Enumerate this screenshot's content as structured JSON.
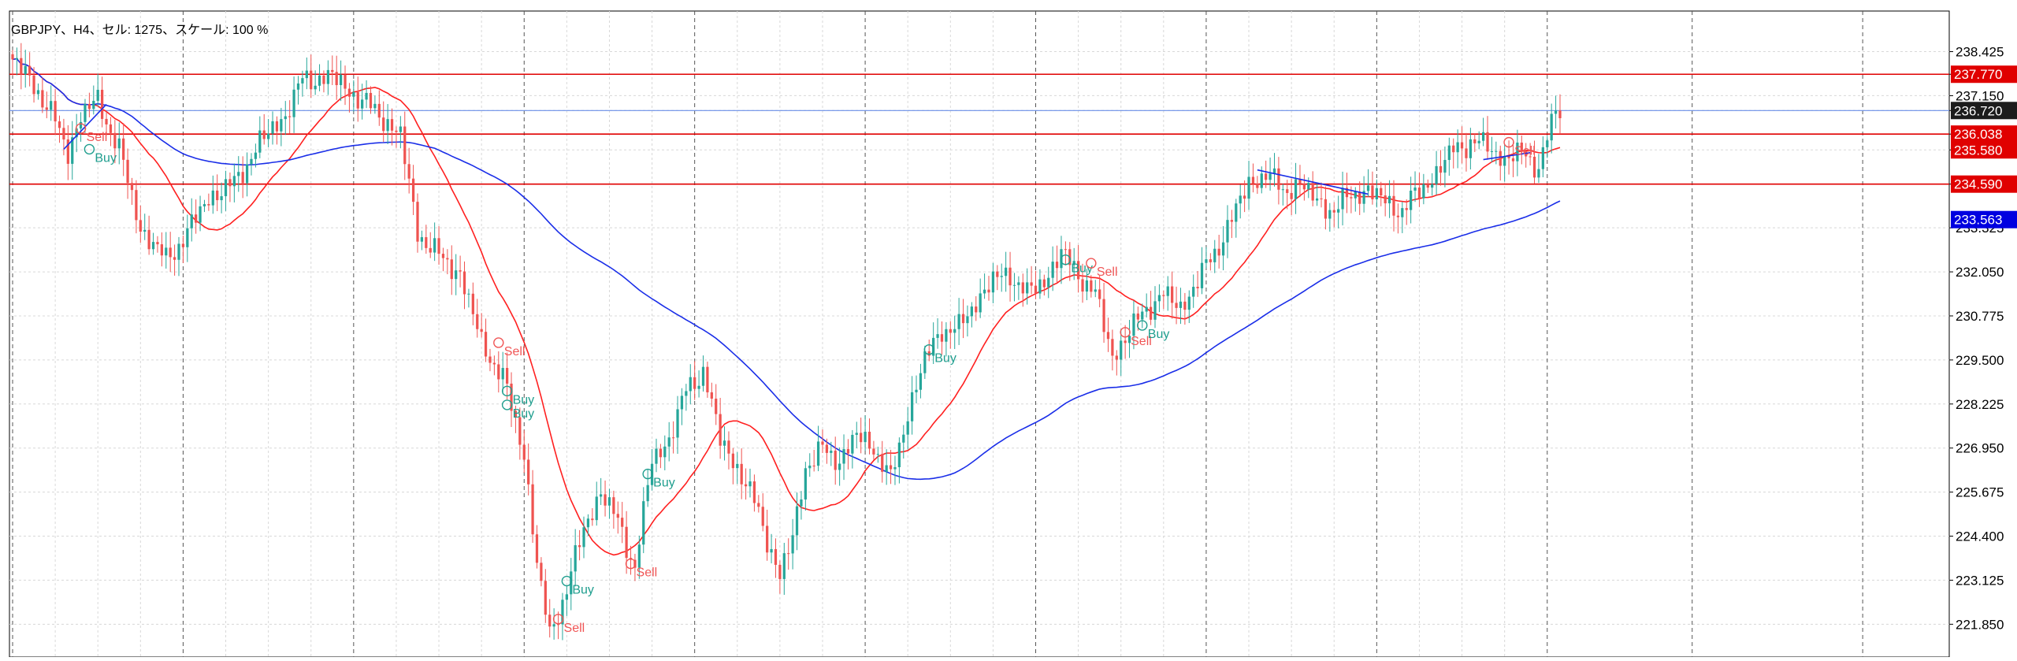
{
  "header": {
    "title": "GBPJPY、H4、セル: 1275、スケール: 100 %"
  },
  "colors": {
    "background": "#ffffff",
    "grid": "#d8d8d8",
    "candle_up": "#26a69a",
    "candle_down": "#ef5350",
    "ma_fast": "#ff2020",
    "ma_slow": "#1a2ee8",
    "hline": "#e00000",
    "current_line": "#6a8fe8",
    "signal_buy": "#1f9e8e",
    "signal_sell": "#f05555",
    "trend": "#1a2ee8"
  },
  "chart_data": {
    "type": "candlestick",
    "symbol": "GBPJPY",
    "timeframe": "H4",
    "ylim": [
      220.9,
      239.6
    ],
    "y_ticks": [
      221.85,
      223.125,
      224.4,
      225.675,
      226.95,
      228.225,
      229.5,
      230.775,
      232.05,
      233.325,
      234.59,
      235.58,
      236.038,
      236.72,
      237.15,
      237.77,
      238.425
    ],
    "y_tick_labels": [
      "221.850",
      "223.125",
      "224.400",
      "225.675",
      "226.950",
      "228.225",
      "229.500",
      "230.775",
      "232.050",
      "233.325",
      "",
      "",
      "",
      "",
      "237.150",
      "",
      "238.425"
    ],
    "price_tags": [
      {
        "value": 237.77,
        "label": "237.770",
        "kind": "level"
      },
      {
        "value": 236.72,
        "label": "236.720",
        "kind": "current"
      },
      {
        "value": 236.038,
        "label": "236.038",
        "kind": "level"
      },
      {
        "value": 235.58,
        "label": "235.580",
        "kind": "level"
      },
      {
        "value": 234.59,
        "label": "234.590",
        "kind": "level"
      },
      {
        "value": 233.563,
        "label": "233.563",
        "kind": "ma_slow"
      }
    ],
    "horizontal_lines": [
      237.77,
      236.038,
      234.59
    ],
    "current_price": 236.72,
    "close_keypoints": [
      [
        0,
        238.2
      ],
      [
        6,
        237.3
      ],
      [
        10,
        236.4
      ],
      [
        13,
        235.5
      ],
      [
        16,
        236.6
      ],
      [
        20,
        237.0
      ],
      [
        25,
        235.6
      ],
      [
        30,
        233.3
      ],
      [
        36,
        232.4
      ],
      [
        40,
        233.0
      ],
      [
        46,
        234.2
      ],
      [
        52,
        234.6
      ],
      [
        58,
        235.8
      ],
      [
        64,
        236.6
      ],
      [
        68,
        237.6
      ],
      [
        75,
        237.7
      ],
      [
        80,
        237.2
      ],
      [
        86,
        236.6
      ],
      [
        91,
        236.0
      ],
      [
        95,
        233.2
      ],
      [
        100,
        232.5
      ],
      [
        105,
        232.0
      ],
      [
        110,
        230.0
      ],
      [
        115,
        229.0
      ],
      [
        120,
        226.8
      ],
      [
        123,
        223.6
      ],
      [
        126,
        221.5
      ],
      [
        130,
        222.9
      ],
      [
        134,
        224.6
      ],
      [
        138,
        225.7
      ],
      [
        142,
        224.8
      ],
      [
        146,
        223.5
      ],
      [
        150,
        226.6
      ],
      [
        154,
        227.2
      ],
      [
        158,
        228.6
      ],
      [
        162,
        229.2
      ],
      [
        166,
        227.2
      ],
      [
        170,
        226.4
      ],
      [
        175,
        225.1
      ],
      [
        180,
        223.2
      ],
      [
        183,
        224.4
      ],
      [
        186,
        226.4
      ],
      [
        190,
        226.9
      ],
      [
        194,
        226.6
      ],
      [
        198,
        227.3
      ],
      [
        202,
        227.0
      ],
      [
        206,
        226.0
      ],
      [
        210,
        228.0
      ],
      [
        214,
        229.5
      ],
      [
        218,
        230.4
      ],
      [
        222,
        230.4
      ],
      [
        226,
        231.2
      ],
      [
        230,
        231.8
      ],
      [
        234,
        232.0
      ],
      [
        238,
        231.4
      ],
      [
        242,
        231.8
      ],
      [
        246,
        232.6
      ],
      [
        250,
        232.0
      ],
      [
        254,
        231.4
      ],
      [
        258,
        229.6
      ],
      [
        262,
        230.3
      ],
      [
        266,
        231.0
      ],
      [
        270,
        231.4
      ],
      [
        274,
        231.0
      ],
      [
        278,
        231.8
      ],
      [
        282,
        232.6
      ],
      [
        286,
        233.6
      ],
      [
        290,
        234.6
      ],
      [
        294,
        234.9
      ],
      [
        298,
        234.4
      ],
      [
        302,
        234.6
      ],
      [
        306,
        234.1
      ],
      [
        310,
        233.8
      ],
      [
        314,
        234.3
      ],
      [
        318,
        234.4
      ],
      [
        322,
        234.1
      ],
      [
        326,
        233.8
      ],
      [
        330,
        234.4
      ],
      [
        334,
        234.9
      ],
      [
        338,
        235.6
      ],
      [
        342,
        235.8
      ],
      [
        346,
        235.7
      ],
      [
        350,
        235.3
      ],
      [
        354,
        235.5
      ],
      [
        358,
        235.1
      ],
      [
        362,
        236.7
      ]
    ],
    "signals": [
      {
        "label": "Sell",
        "type": "sell",
        "x": 16,
        "price": 236.2
      },
      {
        "label": "Buy",
        "type": "buy",
        "x": 18,
        "price": 235.6
      },
      {
        "label": "Sell",
        "type": "sell",
        "x": 114,
        "price": 230.0
      },
      {
        "label": "Buy",
        "type": "buy",
        "x": 116,
        "price": 228.6
      },
      {
        "label": "Buy",
        "type": "buy",
        "x": 116,
        "price": 228.2
      },
      {
        "label": "Buy",
        "type": "buy",
        "x": 130,
        "price": 223.1
      },
      {
        "label": "Sell",
        "type": "sell",
        "x": 128,
        "price": 222.0
      },
      {
        "label": "Sell",
        "type": "sell",
        "x": 145,
        "price": 223.6
      },
      {
        "label": "Buy",
        "type": "buy",
        "x": 149,
        "price": 226.2
      },
      {
        "label": "Buy",
        "type": "buy",
        "x": 215,
        "price": 229.8
      },
      {
        "label": "Buy",
        "type": "buy",
        "x": 247,
        "price": 232.4
      },
      {
        "label": "Sell",
        "type": "sell",
        "x": 253,
        "price": 232.3
      },
      {
        "label": "Sell",
        "type": "sell",
        "x": 261,
        "price": 230.3
      },
      {
        "label": "Buy",
        "type": "buy",
        "x": 265,
        "price": 230.5
      },
      {
        "label": "Sell",
        "type": "sell",
        "x": 351,
        "price": 235.8
      }
    ],
    "trendlines": [
      {
        "from": [
          12,
          235.6
        ],
        "to": [
          22,
          236.9
        ]
      },
      {
        "from": [
          292,
          235.0
        ],
        "to": [
          318,
          234.3
        ]
      },
      {
        "from": [
          345,
          235.3
        ],
        "to": [
          356,
          235.5
        ]
      }
    ],
    "ma_fast_period": 20,
    "ma_slow_period": 100,
    "x_grid_every": 40,
    "bars": 364
  }
}
